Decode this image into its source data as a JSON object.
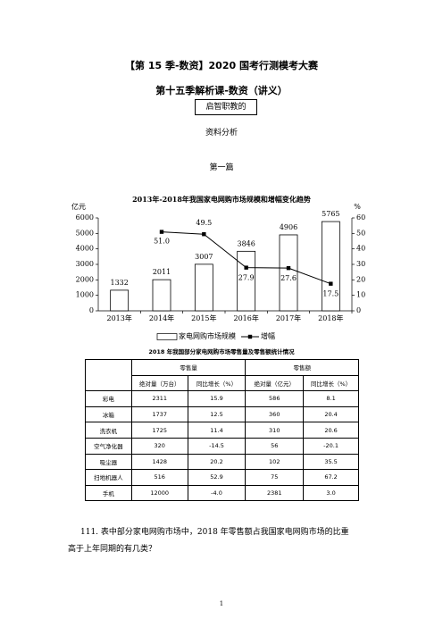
{
  "header": {
    "title": "【第 15 季-数资】2020 国考行测模考大赛",
    "subtitle": "第十五季解析课-数资（讲义）",
    "box": "启智职教的",
    "section": "资料分析",
    "part": "第一篇"
  },
  "chart_data": {
    "type": "bar",
    "title": "2013年-2018年我国家电网购市场规模和增幅变化趋势",
    "ylabel": "亿元",
    "y2label": "%",
    "categories": [
      "2013年",
      "2014年",
      "2015年",
      "2016年",
      "2017年",
      "2018年"
    ],
    "series": [
      {
        "name": "家电网购市场规模",
        "type": "bar",
        "color": "#ffffff",
        "values": [
          1332,
          2011,
          3007,
          3846,
          4906,
          5765
        ]
      },
      {
        "name": "增幅",
        "type": "line",
        "axis": "y2",
        "color": "#000000",
        "values": [
          null,
          51,
          49.5,
          27.9,
          27.6,
          17.5
        ],
        "value_labels": [
          null,
          "51.0",
          "49.5",
          "27.9",
          "27.6",
          "17.5"
        ]
      }
    ],
    "ylim": [
      0,
      6000
    ],
    "yticks": [
      0,
      1000,
      2000,
      3000,
      4000,
      5000,
      6000
    ],
    "y2lim": [
      0,
      60
    ],
    "y2ticks": [
      0,
      10,
      20,
      30,
      40,
      50,
      60
    ],
    "legend": "bottom"
  },
  "table": {
    "title": "2018 年我国部分家电网购市场零售量及零售额统计情况",
    "groups": [
      "零售量",
      "零售额"
    ],
    "columns": [
      "绝对量（万台）",
      "同比增长（%）",
      "绝对量（亿元）",
      "同比增长（%）"
    ],
    "rows": [
      [
        "彩电",
        "2311",
        "15.9",
        "586",
        "8.1"
      ],
      [
        "冰箱",
        "1737",
        "12.5",
        "360",
        "20.4"
      ],
      [
        "洗衣机",
        "1725",
        "11.4",
        "310",
        "20.6"
      ],
      [
        "空气净化器",
        "320",
        "-14.5",
        "56",
        "-20.1"
      ],
      [
        "吸尘器",
        "1428",
        "20.2",
        "102",
        "35.5"
      ],
      [
        "扫地机器人",
        "516",
        "52.9",
        "75",
        "67.2"
      ],
      [
        "手机",
        "12000",
        "-4.0",
        "2381",
        "3.0"
      ]
    ]
  },
  "question": {
    "line1": "111. 表中部分家电网购市场中，2018 年零售额占我国家电网购市场的比重",
    "line2": "高于上年同期的有几类？"
  },
  "page_number": "1"
}
